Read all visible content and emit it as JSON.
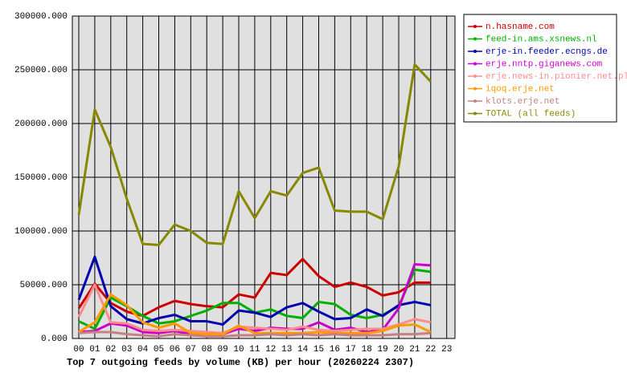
{
  "chart_data": {
    "type": "line",
    "title": "Top 7 outgoing feeds by volume (KB) per hour (20260224 2307)",
    "categories": [
      "00",
      "01",
      "02",
      "03",
      "04",
      "05",
      "06",
      "07",
      "08",
      "09",
      "10",
      "11",
      "12",
      "13",
      "14",
      "15",
      "16",
      "17",
      "18",
      "19",
      "20",
      "21",
      "22",
      "23"
    ],
    "ylim": [
      0,
      300000
    ],
    "yticks": [
      {
        "value": 0,
        "label": "0.000"
      },
      {
        "value": 50000,
        "label": "50000.000"
      },
      {
        "value": 100000,
        "label": "100000.000"
      },
      {
        "value": 150000,
        "label": "150000.000"
      },
      {
        "value": 200000,
        "label": "200000.000"
      },
      {
        "value": 250000,
        "label": "250000.000"
      },
      {
        "value": 300000,
        "label": "300000.000"
      }
    ],
    "grid": true,
    "legend": "right",
    "series": [
      {
        "name": "n.hasname.com",
        "color": "#cc0000",
        "values": [
          28000,
          51000,
          33000,
          25000,
          21000,
          29000,
          35000,
          32000,
          30000,
          29000,
          41000,
          38000,
          61000,
          59000,
          74000,
          58000,
          48000,
          52000,
          48000,
          40000,
          43000,
          52000,
          52000,
          null
        ]
      },
      {
        "name": "feed-in.ams.xsnews.nl",
        "color": "#00b000",
        "values": [
          16000,
          9000,
          38000,
          30000,
          21000,
          14000,
          16000,
          21000,
          26000,
          33000,
          33000,
          24000,
          27000,
          21000,
          19000,
          34000,
          32000,
          22000,
          19000,
          22000,
          30000,
          64000,
          62000,
          null
        ]
      },
      {
        "name": "erje-in.feeder.ecngs.de",
        "color": "#0000b0",
        "values": [
          36000,
          76000,
          30000,
          18000,
          14000,
          19000,
          22000,
          16000,
          16000,
          13000,
          26000,
          24000,
          20000,
          29000,
          33000,
          25000,
          18000,
          19000,
          27000,
          21000,
          31000,
          34000,
          31000,
          null
        ]
      },
      {
        "name": "erje.nntp.giganews.com",
        "color": "#cc00cc",
        "values": [
          6000,
          7000,
          14000,
          12000,
          6000,
          5000,
          7000,
          4000,
          5000,
          4000,
          9000,
          7000,
          10000,
          9000,
          9000,
          15000,
          8000,
          10000,
          6000,
          8000,
          28000,
          69000,
          68000,
          null
        ]
      },
      {
        "name": "erje.news-in.pionier.net.pl",
        "color": "#ff8c8c",
        "values": [
          20000,
          50000,
          15000,
          14000,
          8000,
          7000,
          8000,
          7000,
          6000,
          5000,
          11000,
          10000,
          9000,
          8000,
          11000,
          8000,
          7000,
          8000,
          9000,
          9000,
          13000,
          18000,
          15000,
          null
        ]
      },
      {
        "name": "iqoq.erje.net",
        "color": "#ff9900",
        "values": [
          6000,
          15000,
          41000,
          31000,
          15000,
          10000,
          14000,
          5000,
          4000,
          4000,
          12000,
          5000,
          5000,
          5000,
          5000,
          6000,
          5000,
          5000,
          5000,
          7000,
          12000,
          13000,
          6000,
          null
        ]
      },
      {
        "name": "klots.erje.net",
        "color": "#c88080",
        "values": [
          5000,
          6000,
          6000,
          4000,
          3000,
          2000,
          4000,
          3000,
          2000,
          2000,
          3000,
          3000,
          4000,
          3000,
          4000,
          3000,
          4000,
          3000,
          3000,
          3000,
          4000,
          4000,
          5000,
          null
        ]
      },
      {
        "name": "TOTAL (all feeds)",
        "color": "#888800",
        "values": [
          115000,
          213000,
          178000,
          130000,
          88000,
          87000,
          106000,
          100000,
          89000,
          88000,
          137000,
          112000,
          137000,
          133000,
          154000,
          159000,
          119000,
          118000,
          118000,
          111000,
          160000,
          255000,
          239000,
          null
        ]
      }
    ]
  }
}
